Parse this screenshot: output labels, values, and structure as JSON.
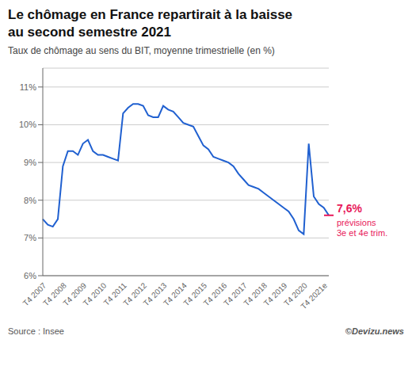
{
  "chart_data": {
    "type": "line",
    "title": [
      "Le chômage en France repartirait à la baisse",
      "au second semestre 2021"
    ],
    "subtitle": "Taux de chômage au sens du BIT, moyenne trimestrielle (en %)",
    "source": "Source : Insee",
    "copyright": "©Devizu.news",
    "categories": [
      "T4 2007",
      null,
      null,
      null,
      "T4 2008",
      null,
      null,
      null,
      "T4 2009",
      null,
      null,
      null,
      "T4 2010",
      null,
      null,
      null,
      "T4 2011",
      null,
      null,
      null,
      "T4 2012",
      null,
      null,
      null,
      "T4 2013",
      null,
      null,
      null,
      "T4 2014",
      null,
      null,
      null,
      "T4 2015",
      null,
      null,
      null,
      "T4 2016",
      null,
      null,
      null,
      "T4 2017",
      null,
      null,
      null,
      "T4 2018",
      null,
      null,
      null,
      "T4 2019",
      null,
      null,
      null,
      "T4 2020",
      null,
      null,
      null,
      "T4 2021e",
      null
    ],
    "values": [
      7.5,
      7.35,
      7.3,
      7.5,
      8.9,
      9.3,
      9.3,
      9.2,
      9.5,
      9.6,
      9.3,
      9.2,
      9.2,
      9.15,
      9.1,
      9.05,
      10.3,
      10.45,
      10.55,
      10.55,
      10.5,
      10.25,
      10.2,
      10.2,
      10.5,
      10.4,
      10.35,
      10.2,
      10.05,
      10.0,
      9.95,
      9.7,
      9.45,
      9.35,
      9.15,
      9.1,
      9.05,
      9.0,
      8.9,
      8.7,
      8.55,
      8.4,
      8.35,
      8.3,
      8.2,
      8.1,
      8.0,
      7.9,
      7.8,
      7.7,
      7.5,
      7.2,
      7.1,
      9.5,
      8.1,
      7.9,
      7.8,
      7.6
    ],
    "color": "#2060d0",
    "ylim": [
      6.0,
      11.5
    ],
    "yticks": [
      {
        "value": 6,
        "label": "6%"
      },
      {
        "value": 7,
        "label": "7%"
      },
      {
        "value": 8,
        "label": "8%"
      },
      {
        "value": 9,
        "label": "9%"
      },
      {
        "value": 10,
        "label": "10%"
      },
      {
        "value": 11,
        "label": "11%"
      }
    ],
    "grid": true,
    "annotations": [
      {
        "x": 57,
        "y": 7.6,
        "texts": [
          "7,6%",
          "prévisions",
          "3e et 4e trim."
        ],
        "color": "#e8185a"
      }
    ]
  }
}
